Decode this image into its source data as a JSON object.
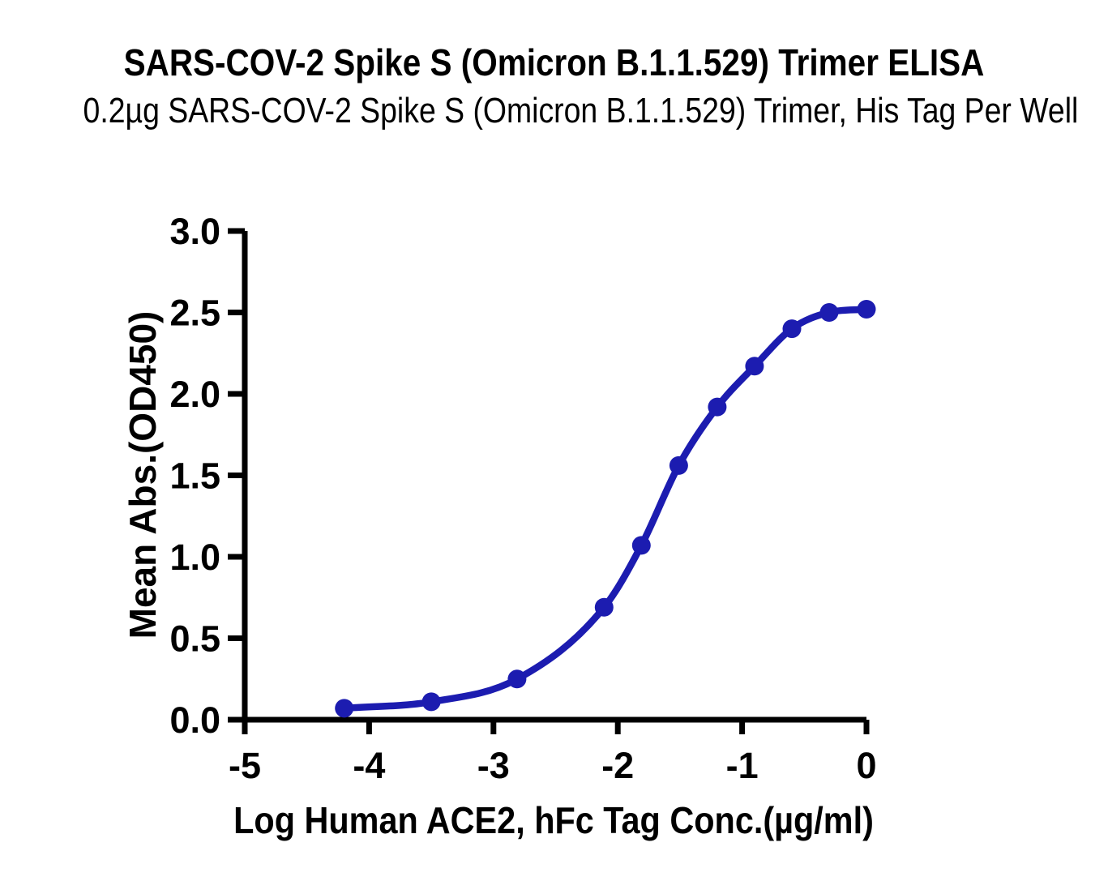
{
  "colors": {
    "curve": "#1c1cb0",
    "axis": "#000000",
    "text": "#000000",
    "background": "#ffffff"
  },
  "chart_data": {
    "type": "line",
    "title": "SARS-COV-2 Spike S (Omicron B.1.1.529) Trimer ELISA",
    "subtitle": "0.2µg SARS-COV-2 Spike S (Omicron B.1.1.529) Trimer, His Tag Per Well",
    "xlabel": "Log Human ACE2, hFc Tag Conc.(µg/ml)",
    "ylabel": "Mean Abs.(OD450)",
    "xlim": [
      -5,
      0
    ],
    "ylim": [
      0,
      3
    ],
    "xticks": [
      -5,
      -4,
      -3,
      -2,
      -1,
      0
    ],
    "xtick_labels": [
      "-5",
      "-4",
      "-3",
      "-2",
      "-1",
      "0"
    ],
    "yticks": [
      0,
      0.5,
      1,
      1.5,
      2,
      2.5,
      3
    ],
    "ytick_labels": [
      "0.0",
      "0.5",
      "1.0",
      "1.5",
      "2.0",
      "2.5",
      "3.0"
    ],
    "grid": false,
    "legend": "none",
    "marker": "circle",
    "series": [
      {
        "x": [
          -4.2,
          -3.5,
          -2.81,
          -2.11,
          -1.81,
          -1.51,
          -1.2,
          -0.9,
          -0.6,
          -0.3,
          0.0
        ],
        "y": [
          0.07,
          0.11,
          0.25,
          0.69,
          1.07,
          1.56,
          1.92,
          2.17,
          2.4,
          2.5,
          2.52
        ]
      }
    ]
  }
}
